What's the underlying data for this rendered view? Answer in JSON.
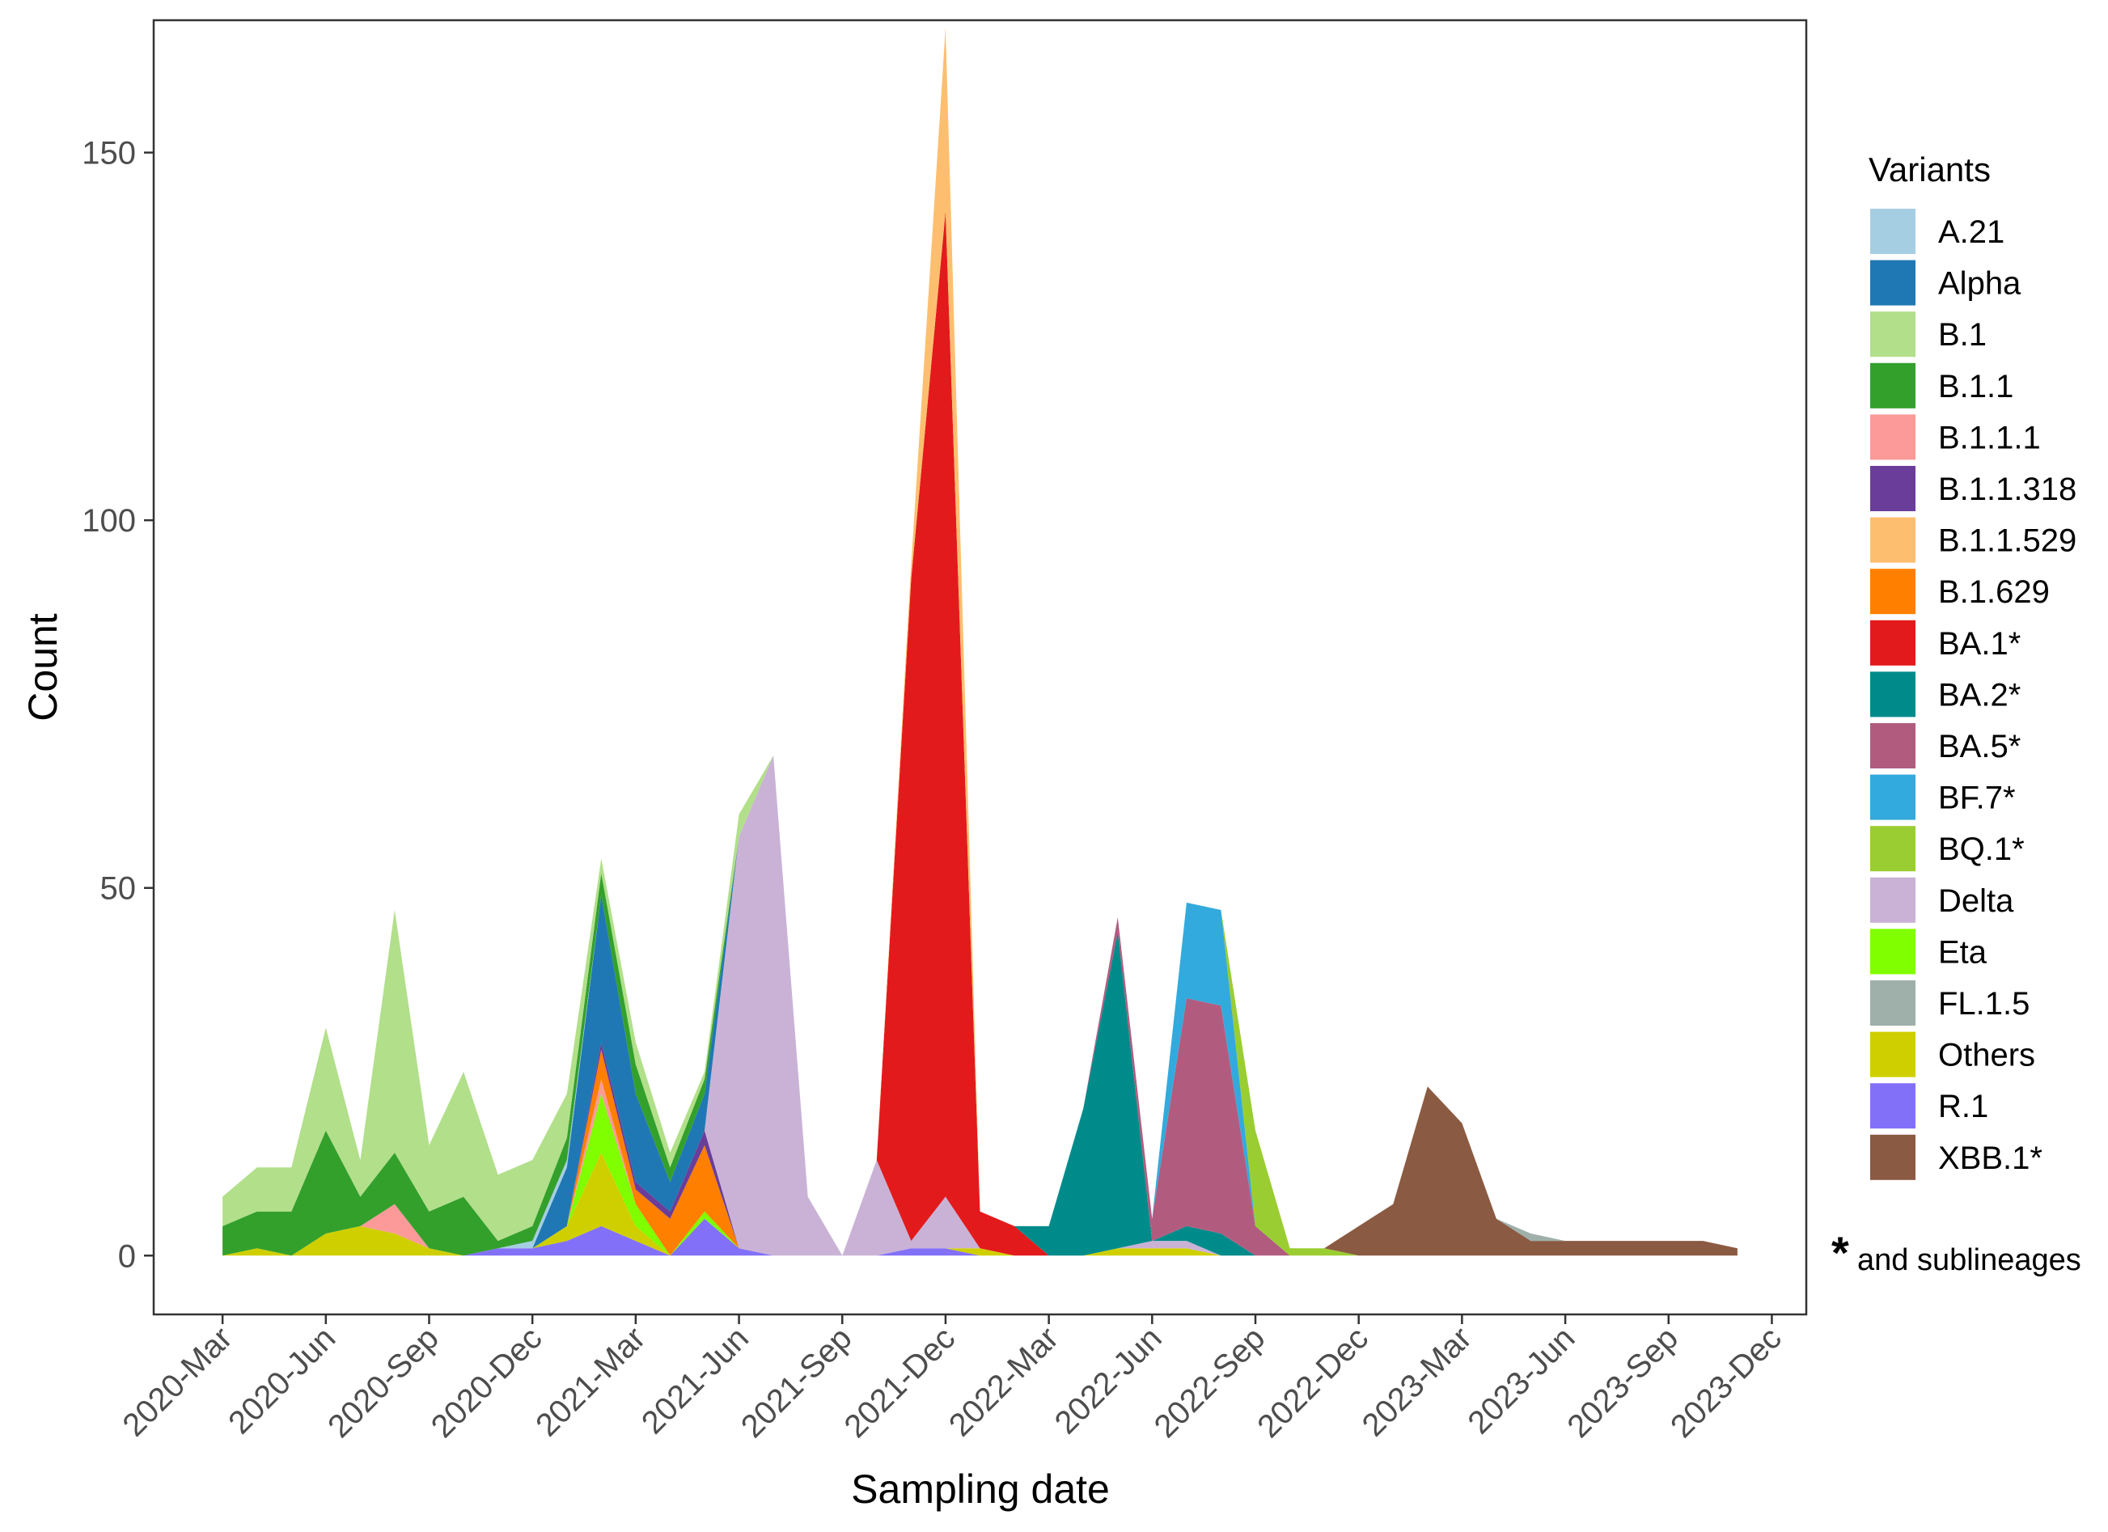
{
  "chart_data": {
    "type": "area",
    "stacked": true,
    "title": "",
    "xlabel": "Sampling date",
    "ylabel": "Count",
    "ylim": [
      -8,
      168
    ],
    "yticks": [
      0,
      50,
      100,
      150
    ],
    "xlim_months": [
      -2,
      46
    ],
    "xticks": [
      {
        "label": "2020-Mar",
        "m": 0
      },
      {
        "label": "2020-Jun",
        "m": 3
      },
      {
        "label": "2020-Sep",
        "m": 6
      },
      {
        "label": "2020-Dec",
        "m": 9
      },
      {
        "label": "2021-Mar",
        "m": 12
      },
      {
        "label": "2021-Jun",
        "m": 15
      },
      {
        "label": "2021-Sep",
        "m": 18
      },
      {
        "label": "2021-Dec",
        "m": 21
      },
      {
        "label": "2022-Mar",
        "m": 24
      },
      {
        "label": "2022-Jun",
        "m": 27
      },
      {
        "label": "2022-Sep",
        "m": 30
      },
      {
        "label": "2022-Dec",
        "m": 33
      },
      {
        "label": "2023-Mar",
        "m": 36
      },
      {
        "label": "2023-Jun",
        "m": 39
      },
      {
        "label": "2023-Sep",
        "m": 42
      },
      {
        "label": "2023-Dec",
        "m": 45
      }
    ],
    "x": [
      0,
      1,
      2,
      3,
      4,
      5,
      6,
      7,
      8,
      9,
      10,
      11,
      12,
      13,
      14,
      15,
      16,
      17,
      18,
      19,
      20,
      21,
      22,
      23,
      24,
      25,
      26,
      27,
      28,
      29,
      30,
      31,
      32,
      33,
      34,
      35,
      36,
      37,
      38,
      39,
      40,
      41,
      42,
      43,
      44
    ],
    "legend_title": "Variants",
    "legend_position": "right",
    "footnote": {
      "star": "*",
      "text": "and sublineages"
    },
    "series": [
      {
        "name": "R.1",
        "color": "#8370F8",
        "values": [
          0,
          0,
          0,
          0,
          0,
          0,
          0,
          0,
          1,
          1,
          2,
          4,
          2,
          0,
          5,
          1,
          0,
          0,
          0,
          0,
          1,
          1,
          0,
          0,
          0,
          0,
          0,
          0,
          0,
          0,
          0,
          0,
          0,
          0,
          0,
          0,
          0,
          0,
          0,
          0,
          0,
          0,
          0,
          0,
          0
        ]
      },
      {
        "name": "Others",
        "color": "#CFCF00",
        "values": [
          0,
          1,
          0,
          3,
          4,
          3,
          1,
          0,
          0,
          0,
          2,
          10,
          2,
          0,
          0,
          0,
          0,
          0,
          0,
          0,
          0,
          0,
          1,
          0,
          0,
          0,
          1,
          1,
          1,
          0,
          0,
          0,
          0,
          0,
          0,
          0,
          0,
          0,
          0,
          0,
          0,
          0,
          0,
          0,
          0
        ]
      },
      {
        "name": "Eta",
        "color": "#7FFF00",
        "values": [
          0,
          0,
          0,
          0,
          0,
          0,
          0,
          0,
          0,
          0,
          0,
          8,
          3,
          0,
          1,
          0,
          0,
          0,
          0,
          0,
          0,
          0,
          0,
          0,
          0,
          0,
          0,
          0,
          0,
          0,
          0,
          0,
          0,
          0,
          0,
          0,
          0,
          0,
          0,
          0,
          0,
          0,
          0,
          0,
          0
        ]
      },
      {
        "name": "B.1.1.1",
        "color": "#FB9A99",
        "values": [
          0,
          0,
          0,
          0,
          0,
          4,
          0,
          0,
          0,
          0,
          0,
          2,
          0,
          0,
          0,
          0,
          0,
          0,
          0,
          0,
          0,
          0,
          0,
          0,
          0,
          0,
          0,
          0,
          0,
          0,
          0,
          0,
          0,
          0,
          0,
          0,
          0,
          0,
          0,
          0,
          0,
          0,
          0,
          0,
          0
        ]
      },
      {
        "name": "B.1.629",
        "color": "#FF7F00",
        "values": [
          0,
          0,
          0,
          0,
          0,
          0,
          0,
          0,
          0,
          0,
          0,
          4,
          2,
          5,
          9,
          0,
          0,
          0,
          0,
          0,
          0,
          0,
          0,
          0,
          0,
          0,
          0,
          0,
          0,
          0,
          0,
          0,
          0,
          0,
          0,
          0,
          0,
          0,
          0,
          0,
          0,
          0,
          0,
          0,
          0
        ]
      },
      {
        "name": "B.1.1.318",
        "color": "#6A3D9A",
        "values": [
          0,
          0,
          0,
          0,
          0,
          0,
          0,
          0,
          0,
          0,
          0,
          1,
          1,
          1,
          2,
          0,
          0,
          0,
          0,
          0,
          0,
          0,
          0,
          0,
          0,
          0,
          0,
          0,
          0,
          0,
          0,
          0,
          0,
          0,
          0,
          0,
          0,
          0,
          0,
          0,
          0,
          0,
          0,
          0,
          0
        ]
      },
      {
        "name": "Delta",
        "color": "#CAB2D6",
        "values": [
          0,
          0,
          0,
          0,
          0,
          0,
          0,
          0,
          0,
          0,
          0,
          0,
          0,
          0,
          0,
          56,
          68,
          8,
          0,
          13,
          1,
          7,
          0,
          0,
          0,
          0,
          0,
          1,
          1,
          0,
          0,
          0,
          0,
          0,
          0,
          0,
          0,
          0,
          0,
          0,
          0,
          0,
          0,
          0,
          0
        ]
      },
      {
        "name": "BA.1*",
        "color": "#E31A1C",
        "values": [
          0,
          0,
          0,
          0,
          0,
          0,
          0,
          0,
          0,
          0,
          0,
          0,
          0,
          0,
          0,
          0,
          0,
          0,
          0,
          0,
          90,
          134,
          5,
          4,
          0,
          0,
          0,
          0,
          0,
          0,
          0,
          0,
          0,
          0,
          0,
          0,
          0,
          0,
          0,
          0,
          0,
          0,
          0,
          0,
          0
        ]
      },
      {
        "name": "B.1.1.529",
        "color": "#FDBF6F",
        "values": [
          0,
          0,
          0,
          0,
          0,
          0,
          0,
          0,
          0,
          0,
          0,
          0,
          0,
          0,
          0,
          0,
          0,
          0,
          0,
          0,
          2,
          25,
          0,
          0,
          0,
          0,
          0,
          0,
          0,
          0,
          0,
          0,
          0,
          0,
          0,
          0,
          0,
          0,
          0,
          0,
          0,
          0,
          0,
          0,
          0
        ]
      },
      {
        "name": "BA.2*",
        "color": "#008B8B",
        "values": [
          0,
          0,
          0,
          0,
          0,
          0,
          0,
          0,
          0,
          0,
          0,
          0,
          0,
          0,
          0,
          0,
          0,
          0,
          0,
          0,
          0,
          0,
          0,
          0,
          4,
          20,
          43,
          0,
          2,
          3,
          0,
          0,
          0,
          0,
          0,
          0,
          0,
          0,
          0,
          0,
          0,
          0,
          0,
          0,
          0
        ]
      },
      {
        "name": "BA.5*",
        "color": "#B15C7F",
        "values": [
          0,
          0,
          0,
          0,
          0,
          0,
          0,
          0,
          0,
          0,
          0,
          0,
          0,
          0,
          0,
          0,
          0,
          0,
          0,
          0,
          0,
          0,
          0,
          0,
          0,
          0,
          2,
          3,
          31,
          31,
          4,
          0,
          0,
          0,
          0,
          0,
          0,
          0,
          0,
          0,
          0,
          0,
          0,
          0,
          0
        ]
      },
      {
        "name": "BF.7*",
        "color": "#33AADD",
        "values": [
          0,
          0,
          0,
          0,
          0,
          0,
          0,
          0,
          0,
          0,
          0,
          0,
          0,
          0,
          0,
          0,
          0,
          0,
          0,
          0,
          0,
          0,
          0,
          0,
          0,
          0,
          0,
          0,
          13,
          13,
          0,
          0,
          0,
          0,
          0,
          0,
          0,
          0,
          0,
          0,
          0,
          0,
          0,
          0,
          0
        ]
      },
      {
        "name": "BQ.1*",
        "color": "#9ACD32",
        "values": [
          0,
          0,
          0,
          0,
          0,
          0,
          0,
          0,
          0,
          0,
          0,
          0,
          0,
          0,
          0,
          0,
          0,
          0,
          0,
          0,
          0,
          0,
          0,
          0,
          0,
          0,
          0,
          0,
          0,
          0,
          13,
          1,
          1,
          0,
          0,
          0,
          0,
          0,
          0,
          0,
          0,
          0,
          0,
          0,
          0
        ]
      },
      {
        "name": "XBB.1*",
        "color": "#8B5A42",
        "values": [
          0,
          0,
          0,
          0,
          0,
          0,
          0,
          0,
          0,
          0,
          0,
          0,
          0,
          0,
          0,
          0,
          0,
          0,
          0,
          0,
          0,
          0,
          0,
          0,
          0,
          0,
          0,
          0,
          0,
          0,
          0,
          0,
          0,
          4,
          7,
          23,
          18,
          5,
          2,
          2,
          2,
          2,
          2,
          2,
          1
        ]
      },
      {
        "name": "FL.1.5",
        "color": "#9FB0AB",
        "values": [
          0,
          0,
          0,
          0,
          0,
          0,
          0,
          0,
          0,
          0,
          0,
          0,
          0,
          0,
          0,
          0,
          0,
          0,
          0,
          0,
          0,
          0,
          0,
          0,
          0,
          0,
          0,
          0,
          0,
          0,
          0,
          0,
          0,
          0,
          0,
          0,
          0,
          0,
          1,
          0,
          0,
          0,
          0,
          0,
          0
        ]
      },
      {
        "name": "Alpha",
        "color": "#1F78B4",
        "values": [
          0,
          0,
          0,
          0,
          0,
          0,
          0,
          0,
          0,
          0,
          8,
          20,
          12,
          4,
          5,
          0,
          0,
          0,
          0,
          0,
          0,
          0,
          0,
          0,
          0,
          0,
          0,
          0,
          0,
          0,
          0,
          0,
          0,
          0,
          0,
          0,
          0,
          0,
          0,
          0,
          0,
          0,
          0,
          0,
          0
        ]
      },
      {
        "name": "A.21",
        "color": "#A6CEE3",
        "values": [
          0,
          0,
          0,
          0,
          0,
          0,
          0,
          0,
          0,
          1,
          1,
          0,
          0,
          0,
          0,
          0,
          0,
          0,
          0,
          0,
          0,
          0,
          0,
          0,
          0,
          0,
          0,
          0,
          0,
          0,
          0,
          0,
          0,
          0,
          0,
          0,
          0,
          0,
          0,
          0,
          0,
          0,
          0,
          0,
          0
        ]
      },
      {
        "name": "B.1.1",
        "color": "#33A02C",
        "values": [
          4,
          5,
          6,
          14,
          4,
          7,
          5,
          8,
          1,
          2,
          3,
          3,
          4,
          2,
          2,
          0,
          0,
          0,
          0,
          0,
          0,
          0,
          0,
          0,
          0,
          0,
          0,
          0,
          0,
          0,
          0,
          0,
          0,
          0,
          0,
          0,
          0,
          0,
          0,
          0,
          0,
          0,
          0,
          0,
          0
        ]
      },
      {
        "name": "B.1",
        "color": "#B2DF8A",
        "values": [
          4,
          6,
          6,
          14,
          5,
          33,
          9,
          17,
          9,
          9,
          6,
          2,
          3,
          2,
          1,
          3,
          0,
          0,
          0,
          0,
          0,
          0,
          0,
          0,
          0,
          0,
          0,
          0,
          0,
          0,
          0,
          0,
          0,
          0,
          0,
          0,
          0,
          0,
          0,
          0,
          0,
          0,
          0,
          0,
          0
        ]
      }
    ],
    "legend_order": [
      "A.21",
      "Alpha",
      "B.1",
      "B.1.1",
      "B.1.1.1",
      "B.1.1.318",
      "B.1.1.529",
      "B.1.629",
      "BA.1*",
      "BA.2*",
      "BA.5*",
      "BF.7*",
      "BQ.1*",
      "Delta",
      "Eta",
      "FL.1.5",
      "Others",
      "R.1",
      "XBB.1*"
    ]
  }
}
